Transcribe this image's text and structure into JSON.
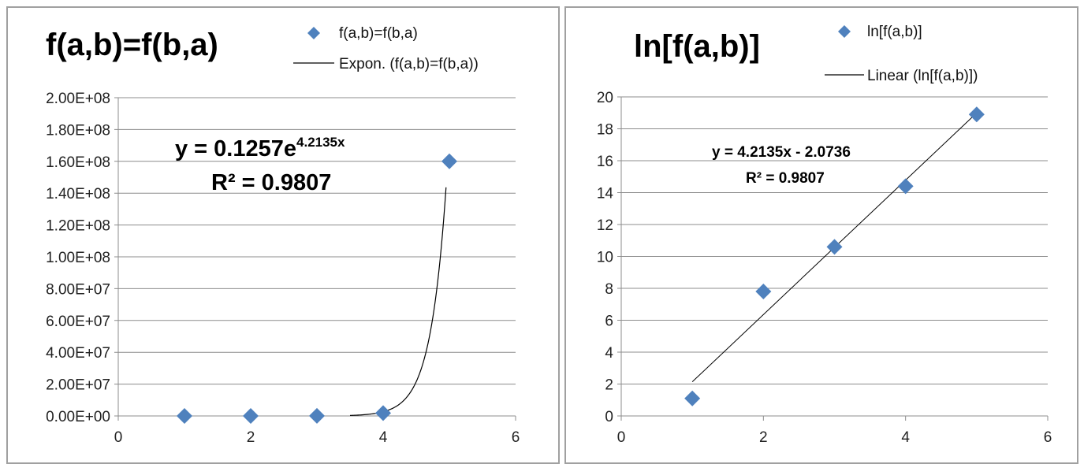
{
  "colors": {
    "marker": "#4f81bd",
    "trend": "#000000",
    "grid": "#8c8c8c"
  },
  "chart_data": [
    {
      "type": "scatter",
      "title": "f(a,b)=f(b,a)",
      "series": [
        {
          "name": "f(a,b)=f(b,a)",
          "x": [
            1,
            2,
            3,
            4,
            5
          ],
          "y": [
            3,
            2500,
            42000,
            1800000,
            160000000
          ]
        }
      ],
      "trendline": {
        "type": "exponential",
        "name": "Expon. (f(a,b)=f(b,a))",
        "a": 0.1257,
        "b": 4.2135,
        "x_range": [
          3.5,
          4.95
        ],
        "equation_main": "y = 0.1257e",
        "equation_exp": "4.2135x",
        "r2_label": "R² = 0.9807"
      },
      "xlim": [
        0,
        6
      ],
      "ylim": [
        0,
        200000000
      ],
      "xticks": [
        0,
        2,
        4,
        6
      ],
      "xtick_labels": [
        "0",
        "2",
        "4",
        "6"
      ],
      "yticks": [
        0,
        20000000,
        40000000,
        60000000,
        80000000,
        100000000,
        120000000,
        140000000,
        160000000,
        180000000,
        200000000
      ],
      "ytick_labels": [
        "0.00E+00",
        "2.00E+07",
        "4.00E+07",
        "6.00E+07",
        "8.00E+07",
        "1.00E+08",
        "1.20E+08",
        "1.40E+08",
        "1.60E+08",
        "1.80E+08",
        "2.00E+08"
      ],
      "grid": true,
      "legend": "top-right"
    },
    {
      "type": "scatter",
      "title": "ln[f(a,b)]",
      "series": [
        {
          "name": "ln[f(a,b)]",
          "x": [
            1,
            2,
            3,
            4,
            5
          ],
          "y": [
            1.1,
            7.8,
            10.6,
            14.4,
            18.9
          ]
        }
      ],
      "trendline": {
        "type": "linear",
        "name": "Linear (ln[f(a,b)])",
        "slope": 4.2135,
        "intercept": -2.0736,
        "x_range": [
          1,
          5
        ],
        "equation": "y = 4.2135x - 2.0736",
        "r2_label": "R² = 0.9807"
      },
      "xlim": [
        0,
        6
      ],
      "ylim": [
        0,
        20
      ],
      "xticks": [
        0,
        2,
        4,
        6
      ],
      "xtick_labels": [
        "0",
        "2",
        "4",
        "6"
      ],
      "yticks": [
        0,
        2,
        4,
        6,
        8,
        10,
        12,
        14,
        16,
        18,
        20
      ],
      "ytick_labels": [
        "0",
        "2",
        "4",
        "6",
        "8",
        "10",
        "12",
        "14",
        "16",
        "18",
        "20"
      ],
      "grid": true,
      "legend": "top-right"
    }
  ]
}
